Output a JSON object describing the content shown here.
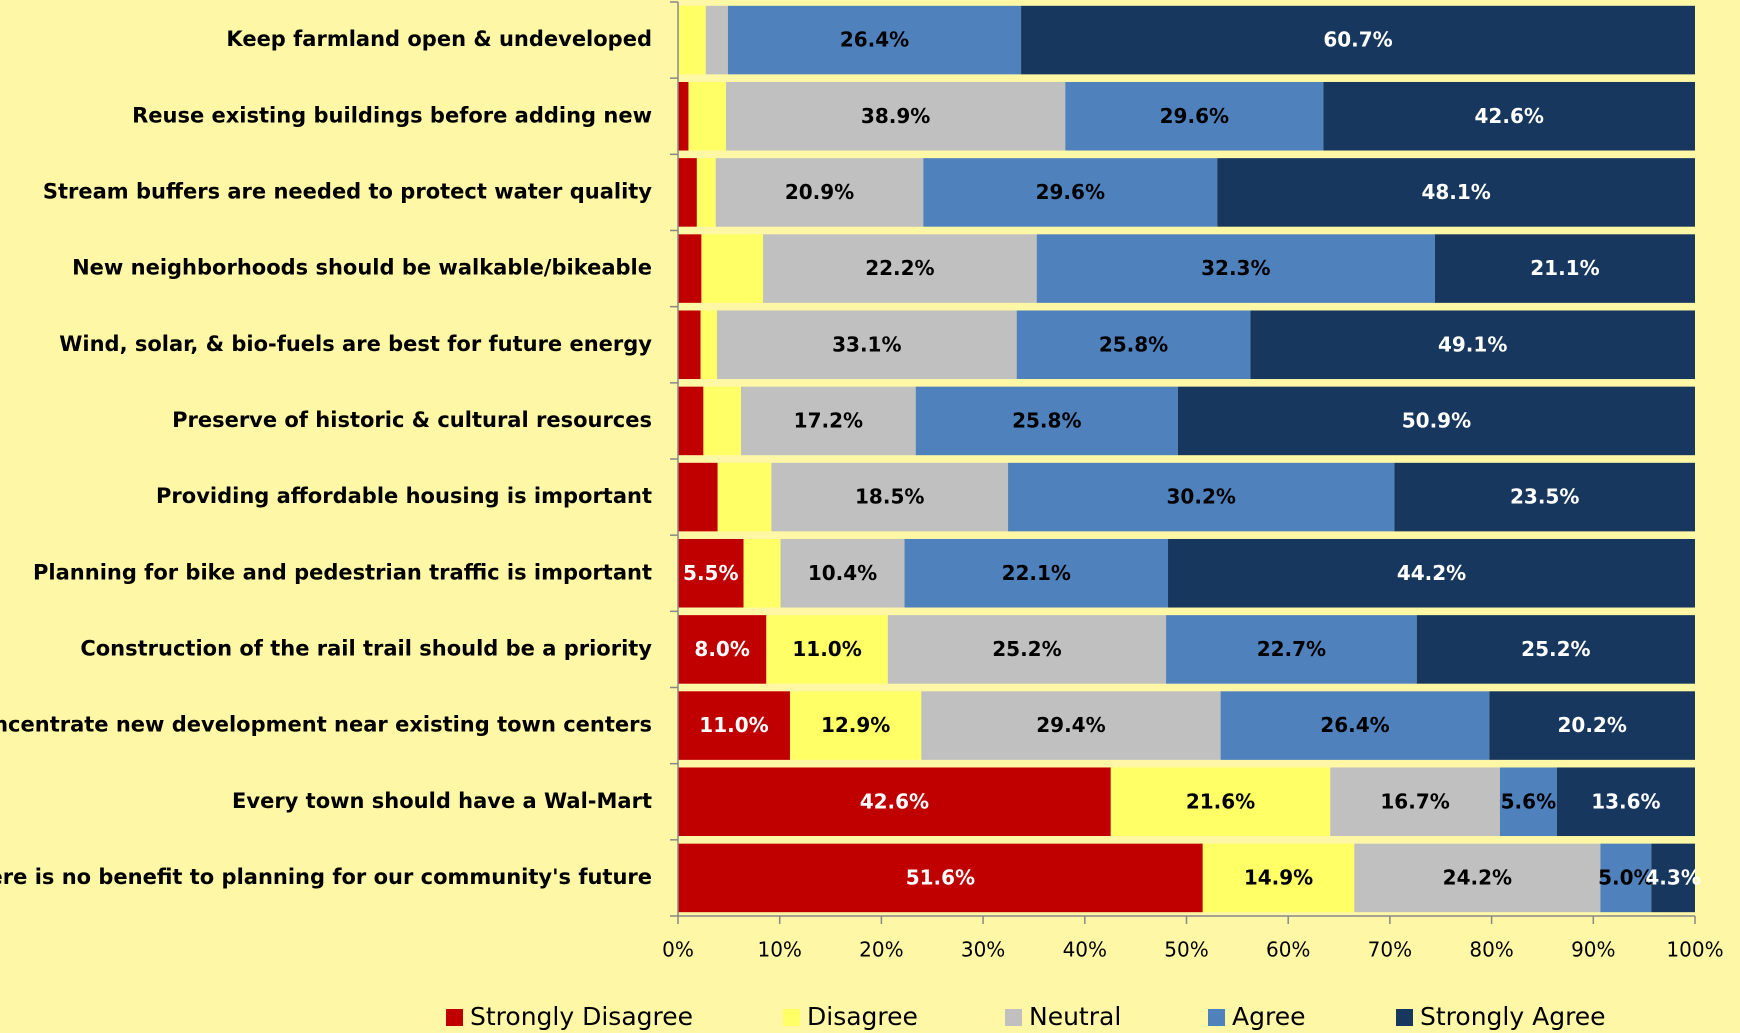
{
  "chart_data": {
    "type": "stacked-bar-horizontal-100",
    "categories": [
      "Keep farmland open & undeveloped",
      "Reuse existing buildings before adding new",
      "Stream buffers are needed to protect water quality",
      "New neighborhoods should be walkable/bikeable",
      "Wind, solar, & bio-fuels are best for future energy",
      "Preserve of historic & cultural resources",
      "Providing affordable housing is important",
      "Planning for bike and pedestrian traffic is important",
      "Construction of the rail trail should be a priority",
      "Concentrate new development near existing town centers",
      "Every town should have a Wal-Mart",
      "There is no benefit to planning for our community's future"
    ],
    "series": [
      {
        "name": "Strongly Disagree",
        "color": "#c00000",
        "values": [
          0,
          1.2,
          1.9,
          1.9,
          2.5,
          2.5,
          3.1,
          5.5,
          8.0,
          11.0,
          42.6,
          51.6
        ],
        "value_labels": [
          null,
          null,
          null,
          null,
          null,
          null,
          null,
          "5.5%",
          "8.0%",
          "11.0%",
          "42.6%",
          "51.6%"
        ]
      },
      {
        "name": "Disagree",
        "color": "#ffff66",
        "values": [
          2.5,
          4.3,
          1.9,
          5.0,
          1.8,
          3.7,
          4.2,
          3.1,
          11.0,
          12.9,
          21.6,
          14.9
        ],
        "value_labels": [
          null,
          null,
          null,
          null,
          null,
          null,
          null,
          null,
          "11.0%",
          "12.9%",
          "21.6%",
          "14.9%"
        ]
      },
      {
        "name": "Neutral",
        "color": "#c0c0c0",
        "values": [
          2.0,
          38.9,
          20.9,
          22.2,
          33.1,
          17.2,
          18.5,
          10.4,
          25.2,
          29.4,
          16.7,
          24.2
        ],
        "value_labels": [
          null,
          "38.9%",
          "20.9%",
          "22.2%",
          "33.1%",
          "17.2%",
          "18.5%",
          "10.4%",
          "25.2%",
          "29.4%",
          "16.7%",
          "24.2%"
        ]
      },
      {
        "name": "Agree",
        "color": "#4f81bd",
        "values": [
          26.4,
          29.6,
          29.6,
          32.3,
          25.8,
          25.8,
          30.2,
          22.1,
          22.7,
          26.4,
          5.6,
          5.0
        ],
        "value_labels": [
          "26.4%",
          "29.6%",
          "29.6%",
          "32.3%",
          "25.8%",
          "25.8%",
          "30.2%",
          "22.1%",
          "22.7%",
          "26.4%",
          "5.6%",
          "5.0%"
        ]
      },
      {
        "name": "Strongly Agree",
        "color": "#17375e",
        "values": [
          60.7,
          42.6,
          48.1,
          21.1,
          49.1,
          50.9,
          23.5,
          44.2,
          25.2,
          20.2,
          13.6,
          4.3
        ],
        "value_labels": [
          "60.7%",
          "42.6%",
          "48.1%",
          "21.1%",
          "49.1%",
          "50.9%",
          "23.5%",
          "44.2%",
          "25.2%",
          "20.2%",
          "13.6%",
          "4.3%"
        ]
      }
    ],
    "xlim": [
      0,
      100
    ],
    "xticks": [
      {
        "value": 0,
        "label": "0%"
      },
      {
        "value": 10,
        "label": "10%"
      },
      {
        "value": 20,
        "label": "20%"
      },
      {
        "value": 30,
        "label": "30%"
      },
      {
        "value": 40,
        "label": "40%"
      },
      {
        "value": 50,
        "label": "50%"
      },
      {
        "value": 60,
        "label": "60%"
      },
      {
        "value": 70,
        "label": "70%"
      },
      {
        "value": 80,
        "label": "80%"
      },
      {
        "value": 90,
        "label": "90%"
      },
      {
        "value": 100,
        "label": "100%"
      }
    ],
    "legend": "bottom"
  }
}
